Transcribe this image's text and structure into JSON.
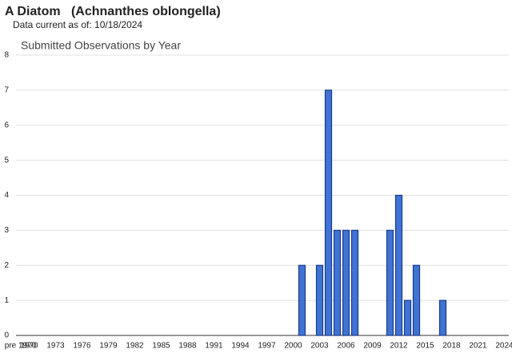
{
  "chart_data": {
    "type": "bar",
    "title": "A Diatom   (Achnanthes oblongella)",
    "subtitle": "Data current as of: 10/18/2024",
    "chart_title": "Submitted Observations by Year",
    "categories": [
      "pre 1970",
      "1970",
      null,
      null,
      "1973",
      null,
      null,
      "1976",
      null,
      null,
      "1979",
      null,
      null,
      "1982",
      null,
      null,
      "1985",
      null,
      null,
      "1988",
      null,
      null,
      "1991",
      null,
      null,
      "1994",
      null,
      null,
      "1997",
      null,
      null,
      "2000",
      null,
      null,
      "2003",
      null,
      null,
      "2006",
      null,
      null,
      "2009",
      null,
      null,
      "2012",
      null,
      null,
      "2015",
      null,
      null,
      "2018",
      null,
      null,
      "2021",
      null,
      null,
      "2024"
    ],
    "values": [
      0,
      0,
      0,
      0,
      0,
      0,
      0,
      0,
      0,
      0,
      0,
      0,
      0,
      0,
      0,
      0,
      0,
      0,
      0,
      0,
      0,
      0,
      0,
      0,
      0,
      0,
      0,
      0,
      0,
      0,
      0,
      0,
      2,
      0,
      2,
      7,
      3,
      3,
      3,
      0,
      0,
      0,
      3,
      4,
      1,
      2,
      0,
      0,
      1,
      0,
      0,
      0,
      0,
      0,
      0,
      0
    ],
    "color": "#3f74d4",
    "ylim": [
      0,
      8
    ],
    "yticks": [
      0,
      1,
      2,
      3,
      4,
      5,
      6,
      7,
      8
    ],
    "grid": true
  }
}
